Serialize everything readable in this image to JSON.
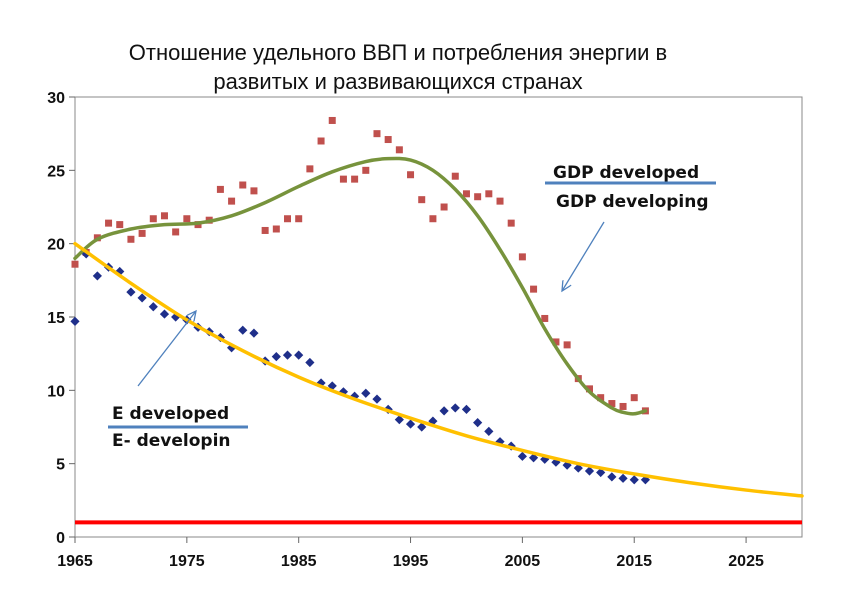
{
  "chart_data": {
    "type": "scatter",
    "title_lines": [
      "Отношение удельного ВВП и потребления энергии в",
      "развитых и развивающихся странах"
    ],
    "xlim": [
      1965,
      2030
    ],
    "ylim": [
      0,
      30
    ],
    "x_ticks": [
      1965,
      1975,
      1985,
      1995,
      2005,
      2015,
      2025
    ],
    "y_ticks": [
      0,
      5,
      10,
      15,
      20,
      25,
      30
    ],
    "grid": false,
    "annotations": {
      "gdp_top": "GDP developed",
      "gdp_bottom": "GDP developing",
      "e_top": "E developed",
      "e_bottom": "E- developin"
    },
    "colors": {
      "gdp_points": "#c0504d",
      "e_points": "#1f2f8a",
      "gdp_trend": "#77933c",
      "e_trend": "#ffc000",
      "baseline": "#ff0000",
      "annotation_line": "#4f81bd",
      "arrow": "#4f81bd"
    },
    "series": [
      {
        "kind": "points",
        "marker": "square",
        "color": "#c0504d",
        "x": [
          1965,
          1966,
          1967,
          1968,
          1969,
          1970,
          1971,
          1972,
          1973,
          1974,
          1975,
          1976,
          1977,
          1978,
          1979,
          1980,
          1981,
          1982,
          1983,
          1984,
          1985,
          1986,
          1987,
          1988,
          1989,
          1990,
          1991,
          1992,
          1993,
          1994,
          1995,
          1996,
          1997,
          1998,
          1999,
          2000,
          2001,
          2002,
          2003,
          2004,
          2005,
          2006,
          2007,
          2008,
          2009,
          2010,
          2011,
          2012,
          2013,
          2014,
          2015,
          2016
        ],
        "y": [
          18.6,
          19.4,
          20.4,
          21.4,
          21.3,
          20.3,
          20.7,
          21.7,
          21.9,
          20.8,
          21.7,
          21.3,
          21.6,
          23.7,
          22.9,
          24.0,
          23.6,
          20.9,
          21.0,
          21.7,
          21.7,
          25.1,
          27.0,
          28.4,
          24.4,
          24.4,
          25.0,
          27.5,
          27.1,
          26.4,
          24.7,
          23.0,
          21.7,
          22.5,
          24.6,
          23.4,
          23.2,
          23.4,
          22.9,
          21.4,
          19.1,
          16.9,
          14.9,
          13.3,
          13.1,
          10.8,
          10.1,
          9.5,
          9.1,
          8.9,
          9.5,
          8.6
        ]
      },
      {
        "kind": "points",
        "marker": "diamond",
        "color": "#1f2f8a",
        "x": [
          1965,
          1966,
          1967,
          1968,
          1969,
          1970,
          1971,
          1972,
          1973,
          1974,
          1975,
          1976,
          1977,
          1978,
          1979,
          1980,
          1981,
          1982,
          1983,
          1984,
          1985,
          1986,
          1987,
          1988,
          1989,
          1990,
          1991,
          1992,
          1993,
          1994,
          1995,
          1996,
          1997,
          1998,
          1999,
          2000,
          2001,
          2002,
          2003,
          2004,
          2005,
          2006,
          2007,
          2008,
          2009,
          2010,
          2011,
          2012,
          2013,
          2014,
          2015,
          2016
        ],
        "y": [
          14.7,
          19.3,
          17.8,
          18.4,
          18.1,
          16.7,
          16.3,
          15.7,
          15.2,
          15.0,
          14.8,
          14.3,
          14.0,
          13.6,
          12.9,
          14.1,
          13.9,
          12.0,
          12.3,
          12.4,
          12.4,
          11.9,
          10.5,
          10.3,
          9.9,
          9.6,
          9.8,
          9.4,
          8.7,
          8.0,
          7.7,
          7.5,
          7.9,
          8.6,
          8.8,
          8.7,
          7.8,
          7.2,
          6.5,
          6.2,
          5.5,
          5.4,
          5.3,
          5.1,
          4.9,
          4.7,
          4.5,
          4.4,
          4.1,
          4.0,
          3.9,
          3.9
        ]
      },
      {
        "kind": "trend",
        "color": "#77933c",
        "x": [
          1965,
          1967,
          1970,
          1973,
          1976,
          1979,
          1982,
          1985,
          1988,
          1991,
          1993,
          1995,
          1997,
          1999,
          2001,
          2003,
          2005,
          2007,
          2009,
          2011,
          2013,
          2014,
          2015,
          2016
        ],
        "y": [
          19.0,
          20.3,
          21.0,
          21.3,
          21.4,
          21.9,
          22.8,
          23.9,
          24.9,
          25.6,
          25.8,
          25.7,
          25.0,
          23.7,
          21.9,
          19.6,
          17.0,
          14.2,
          11.8,
          9.9,
          8.8,
          8.5,
          8.4,
          8.6
        ]
      },
      {
        "kind": "trend",
        "color": "#ffc000",
        "x": [
          1965,
          1970,
          1975,
          1980,
          1985,
          1990,
          1995,
          2000,
          2005,
          2010,
          2015,
          2020,
          2025,
          2030
        ],
        "y": [
          20.0,
          17.3,
          14.8,
          12.7,
          10.9,
          9.4,
          8.1,
          6.9,
          5.9,
          5.0,
          4.3,
          3.7,
          3.2,
          2.8
        ]
      },
      {
        "kind": "baseline",
        "color": "#ff0000",
        "x": [
          1965,
          2030
        ],
        "y": [
          1,
          1
        ]
      }
    ]
  }
}
